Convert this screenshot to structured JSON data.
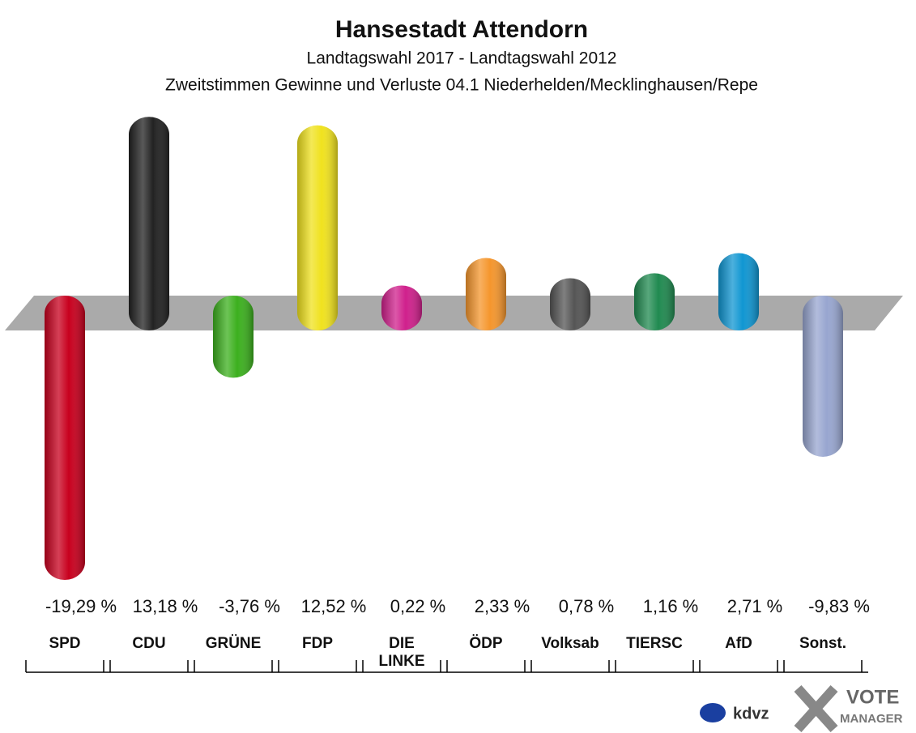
{
  "chart_data": {
    "type": "bar",
    "title": "Hansestadt Attendorn",
    "subtitle": "Landtagswahl 2017 - Landtagswahl 2012",
    "subtitle2": "Zweitstimmen Gewinne und Verluste 04.1 Niederhelden/Mecklinghausen/Repe",
    "categories": [
      "SPD",
      "CDU",
      "GRÜNE",
      "FDP",
      "DIE LINKE",
      "ÖDP",
      "Volksab",
      "TIERSC",
      "AfD",
      "Sonst."
    ],
    "values": [
      -19.29,
      13.18,
      -3.76,
      12.52,
      0.22,
      2.33,
      0.78,
      1.16,
      2.71,
      -9.83
    ],
    "value_labels": [
      "-19,29 %",
      "13,18 %",
      "-3,76 %",
      "12,52 %",
      "0,22 %",
      "2,33 %",
      "0,78 %",
      "1,16 %",
      "2,71 %",
      "-9,83 %"
    ],
    "colors": [
      "#c8001e",
      "#222222",
      "#3cb01e",
      "#f0e21e",
      "#d0208c",
      "#f5962d",
      "#555555",
      "#208a50",
      "#1096d2",
      "#98a6d0"
    ]
  },
  "logo": {
    "brand": "kdvz",
    "vote": "VOTE",
    "manager": "MANAGER"
  }
}
